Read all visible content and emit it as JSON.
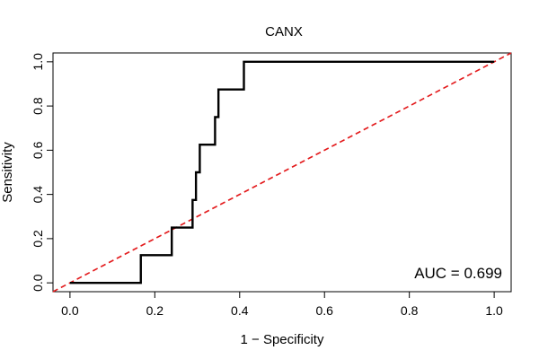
{
  "chart_data": {
    "type": "line",
    "title": "CANX",
    "xlabel": "1 − Specificity",
    "ylabel": "Sensitivity",
    "xlim": [
      -0.04,
      1.04
    ],
    "ylim": [
      -0.04,
      1.04
    ],
    "x_ticks": [
      0.0,
      0.2,
      0.4,
      0.6,
      0.8,
      1.0
    ],
    "x_tick_labels": [
      "0.0",
      "0.2",
      "0.4",
      "0.6",
      "0.8",
      "1.0"
    ],
    "y_ticks": [
      0.0,
      0.2,
      0.4,
      0.6,
      0.8,
      1.0
    ],
    "y_tick_labels": [
      "0.0",
      "0.2",
      "0.4",
      "0.6",
      "0.8",
      "1.0"
    ],
    "grid": false,
    "annotation": "AUC = 0.699",
    "series": [
      {
        "name": "ROC",
        "color": "#000000",
        "style": "solid",
        "x": [
          0.0,
          0.167,
          0.167,
          0.24,
          0.24,
          0.289,
          0.289,
          0.297,
          0.297,
          0.306,
          0.306,
          0.342,
          0.342,
          0.35,
          0.35,
          0.41,
          0.41,
          1.0
        ],
        "y": [
          0.0,
          0.0,
          0.125,
          0.125,
          0.25,
          0.25,
          0.375,
          0.375,
          0.5,
          0.5,
          0.625,
          0.625,
          0.75,
          0.75,
          0.875,
          0.875,
          1.0,
          1.0
        ]
      },
      {
        "name": "Chance",
        "color": "#e31a1c",
        "style": "dashed",
        "x": [
          -0.04,
          1.04
        ],
        "y": [
          -0.04,
          1.04
        ]
      }
    ]
  }
}
